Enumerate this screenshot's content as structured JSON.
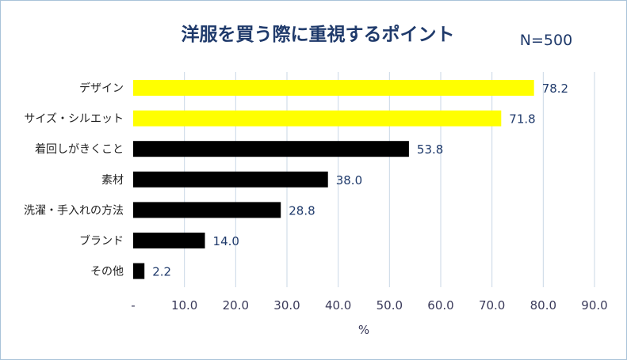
{
  "chart_data": {
    "type": "bar",
    "orientation": "horizontal",
    "title": "洋服を買う際に重視するポイント",
    "subtitle": "N=500",
    "categories": [
      "デザイン",
      "サイズ・シルエット",
      "着回しがきくこと",
      "素材",
      "洗濯・手入れの方法",
      "ブランド",
      "その他"
    ],
    "values": [
      78.2,
      71.8,
      53.8,
      38.0,
      28.8,
      14.0,
      2.2
    ],
    "value_labels": [
      "78.2",
      "71.8",
      "53.8",
      "38.0",
      "28.8",
      "14.0",
      "2.2"
    ],
    "bar_colors": [
      "#ffff00",
      "#ffff00",
      "#000000",
      "#000000",
      "#000000",
      "#000000",
      "#000000"
    ],
    "xlabel": "%",
    "ylabel": "",
    "xlim": [
      0,
      90
    ],
    "x_ticks": [
      0,
      10,
      20,
      30,
      40,
      50,
      60,
      70,
      80,
      90
    ],
    "x_tick_labels": [
      "-",
      "10.0",
      "20.0",
      "30.0",
      "40.0",
      "50.0",
      "60.0",
      "70.0",
      "80.0",
      "90.0"
    ],
    "grid": "vertical",
    "legend": "none",
    "grid_color": "#c9d7e6",
    "title_color": "#1f3a6b"
  }
}
